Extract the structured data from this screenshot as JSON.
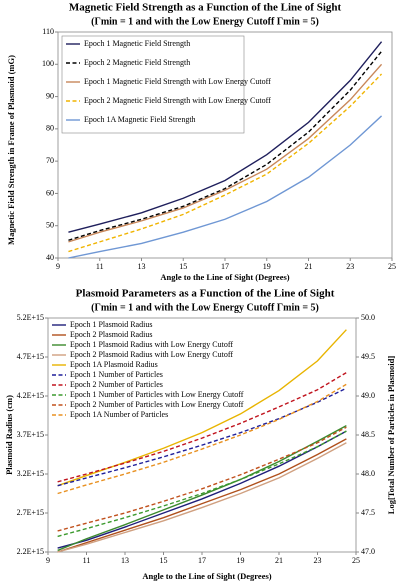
{
  "chart_data": [
    {
      "type": "line",
      "title": "Magnetic Field Strength as a Function of the Line of Sight",
      "subtitle": "(Γmin = 1 and with the Low Energy Cutoff Γmin = 5)",
      "x_label": "Angle to the Line of Sight (Degrees)",
      "y_label": "Magnetic Field Strength in Frame of Plasmoid (mG)",
      "x": [
        9.5,
        11,
        13,
        15,
        17,
        19,
        21,
        23,
        24.5
      ],
      "xlim": [
        9,
        25
      ],
      "xticks": [
        9,
        11,
        13,
        15,
        17,
        19,
        21,
        23,
        25
      ],
      "ylim": [
        40,
        110
      ],
      "yticks": [
        40,
        50,
        60,
        70,
        80,
        90,
        100,
        110
      ],
      "legend": "upper-left",
      "series": [
        {
          "name": "Epoch 1 Magnetic Field Strength",
          "color": "#1f1f5c",
          "line_style": "solid",
          "values": [
            48,
            50.5,
            54,
            58.5,
            64,
            72,
            82,
            95,
            107
          ]
        },
        {
          "name": "Epoch 2 Magnetic Field Strength",
          "color": "#000000",
          "line_style": "dashed",
          "values": [
            45.5,
            48.5,
            52,
            56,
            61.5,
            69,
            79,
            92,
            104
          ]
        },
        {
          "name": "Epoch 1 Magnetic Field Strength with Low Energy Cutoff",
          "color": "#c8875a",
          "line_style": "solid",
          "values": [
            45,
            48,
            51.5,
            55.5,
            61,
            67.5,
            77,
            89,
            100
          ]
        },
        {
          "name": "Epoch 2 Magnetic Field Strength with Low Energy Cutoff",
          "color": "#f0b400",
          "line_style": "dashed",
          "values": [
            42,
            45,
            49,
            53.5,
            59.5,
            66,
            75.5,
            87,
            97
          ]
        },
        {
          "name": "Epoch 1A Magnetic Field Strength",
          "color": "#6f97d4",
          "line_style": "solid",
          "values": [
            40,
            42,
            44.5,
            48,
            52,
            57.5,
            65,
            75,
            84
          ]
        }
      ]
    },
    {
      "type": "line",
      "title": "Plasmoid Parameters as a Function of the Line of Sight",
      "subtitle": "(Γmin = 1 and with the Low Energy Cutoff Γmin = 5)",
      "x_label": "Angle to the Line of Sight (Degrees)",
      "y_label": "Plasmoid Radius (cm)",
      "y2_label": "Log[Total Number of Particles in Plasmoid]",
      "x": [
        9.5,
        11,
        13,
        15,
        17,
        19,
        21,
        23,
        24.5
      ],
      "xlim": [
        9,
        25
      ],
      "xticks": [
        9,
        11,
        13,
        15,
        17,
        19,
        21,
        23,
        25
      ],
      "ylim": [
        2200000000000000.0,
        5200000000000000.0
      ],
      "yticks": [
        {
          "value": 2200000000000000.0,
          "label": "2.2E+15"
        },
        {
          "value": 2700000000000000.0,
          "label": "2.7E+15"
        },
        {
          "value": 3200000000000000.0,
          "label": "3.2E+15"
        },
        {
          "value": 3700000000000000.0,
          "label": "3.7E+15"
        },
        {
          "value": 4200000000000000.0,
          "label": "4.2E+15"
        },
        {
          "value": 4700000000000000.0,
          "label": "4.7E+15"
        },
        {
          "value": 5200000000000000.0,
          "label": "5.2E+15"
        }
      ],
      "y2lim": [
        47,
        50
      ],
      "y2ticks": [
        {
          "value": 47,
          "label": "47.0"
        },
        {
          "value": 47.5,
          "label": "47.5"
        },
        {
          "value": 48,
          "label": "48.0"
        },
        {
          "value": 48.5,
          "label": "48.5"
        },
        {
          "value": 49,
          "label": "49.0"
        },
        {
          "value": 49.5,
          "label": "49.5"
        },
        {
          "value": 50,
          "label": "50.0"
        }
      ],
      "legend": "upper-left",
      "series": [
        {
          "name": "Epoch 1 Plasmoid Radius",
          "color": "#1f1f7a",
          "line_style": "solid",
          "values": [
            2250000000000000.0,
            2350000000000000.0,
            2520000000000000.0,
            2700000000000000.0,
            2880000000000000.0,
            3080000000000000.0,
            3300000000000000.0,
            3550000000000000.0,
            3750000000000000.0
          ]
        },
        {
          "name": "Epoch 2 Plasmoid Radius",
          "color": "#b0501c",
          "line_style": "solid",
          "values": [
            2200000000000000.0,
            2320000000000000.0,
            2480000000000000.0,
            2640000000000000.0,
            2820000000000000.0,
            3000000000000000.0,
            3200000000000000.0,
            3450000000000000.0,
            3650000000000000.0
          ]
        },
        {
          "name": "Epoch 1 Plasmoid Radius with Low Energy Cutoff",
          "color": "#3c8a2e",
          "line_style": "solid",
          "values": [
            2220000000000000.0,
            2370000000000000.0,
            2550000000000000.0,
            2740000000000000.0,
            2930000000000000.0,
            3130000000000000.0,
            3360000000000000.0,
            3620000000000000.0,
            3820000000000000.0
          ]
        },
        {
          "name": "Epoch 2 Plasmoid Radius with Low Energy Cutoff",
          "color": "#d0a080",
          "line_style": "solid",
          "values": [
            2200000000000000.0,
            2300000000000000.0,
            2450000000000000.0,
            2600000000000000.0,
            2770000000000000.0,
            2950000000000000.0,
            3150000000000000.0,
            3400000000000000.0,
            3600000000000000.0
          ]
        },
        {
          "name": "Epoch 1A Plasmoid Radius",
          "color": "#e8b400",
          "line_style": "solid",
          "values": [
            3050000000000000.0,
            3180000000000000.0,
            3350000000000000.0,
            3530000000000000.0,
            3730000000000000.0,
            3970000000000000.0,
            4270000000000000.0,
            4650000000000000.0,
            5050000000000000.0
          ]
        },
        {
          "name": "Epoch 1 Number of Particles",
          "color": "#1f1f9a",
          "line_style": "dashed",
          "axis": "y2",
          "values": [
            47.85,
            47.95,
            48.08,
            48.22,
            48.37,
            48.53,
            48.71,
            48.92,
            49.1
          ]
        },
        {
          "name": "Epoch 2 Number of Particles",
          "color": "#c0141e",
          "line_style": "dashed",
          "axis": "y2",
          "values": [
            47.9,
            48.0,
            48.14,
            48.29,
            48.46,
            48.65,
            48.86,
            49.08,
            49.3
          ]
        },
        {
          "name": "Epoch 1 Number of Particles with Low Energy Cutoff",
          "color": "#3c9a2e",
          "line_style": "dashed",
          "axis": "y2",
          "values": [
            47.2,
            47.3,
            47.44,
            47.59,
            47.75,
            47.93,
            48.13,
            48.35,
            48.55
          ]
        },
        {
          "name": "Epoch 2 Number of Particles with Low Energy Cutoff",
          "color": "#c0501c",
          "line_style": "dashed",
          "axis": "y2",
          "values": [
            47.27,
            47.37,
            47.5,
            47.65,
            47.81,
            47.99,
            48.19,
            48.4,
            48.6
          ]
        },
        {
          "name": "Epoch 1A Number of Particles",
          "color": "#e89020",
          "line_style": "dashed",
          "axis": "y2",
          "values": [
            47.75,
            47.86,
            48.0,
            48.15,
            48.32,
            48.5,
            48.7,
            48.93,
            49.15
          ]
        }
      ]
    }
  ]
}
